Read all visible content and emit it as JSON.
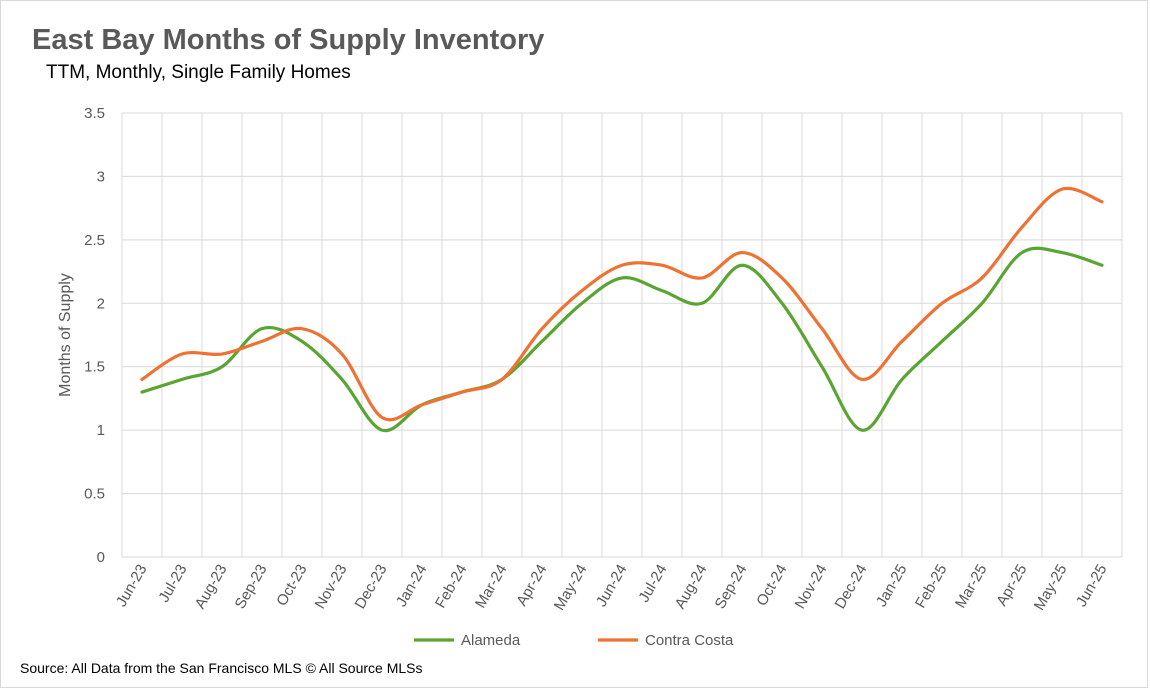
{
  "chart_data": {
    "type": "line",
    "title": "East Bay Months of Supply Inventory",
    "subtitle": "TTM, Monthly, Single Family Homes",
    "ylabel": "Months of Supply",
    "xlabel": "",
    "ylim": [
      0,
      3.5
    ],
    "yticks": [
      "0",
      "0.5",
      "1",
      "1.5",
      "2",
      "2.5",
      "3",
      "3.5"
    ],
    "grid": "both",
    "legend_position": "bottom",
    "categories": [
      "Jun-23",
      "Jul-23",
      "Aug-23",
      "Sep-23",
      "Oct-23",
      "Nov-23",
      "Dec-23",
      "Jan-24",
      "Feb-24",
      "Mar-24",
      "Apr-24",
      "May-24",
      "Jun-24",
      "Jul-24",
      "Aug-24",
      "Sep-24",
      "Oct-24",
      "Nov-24",
      "Dec-24",
      "Jan-25",
      "Feb-25",
      "Mar-25",
      "Apr-25",
      "May-25",
      "Jun-25"
    ],
    "series": [
      {
        "name": "Alameda",
        "color": "#5aa532",
        "values": [
          1.3,
          1.4,
          1.5,
          1.8,
          1.7,
          1.4,
          1.0,
          1.2,
          1.3,
          1.4,
          1.7,
          2.0,
          2.2,
          2.1,
          2.0,
          2.3,
          2.0,
          1.5,
          1.0,
          1.4,
          1.7,
          2.0,
          2.4,
          2.4,
          2.3
        ]
      },
      {
        "name": "Contra Costa",
        "color": "#ed7233",
        "values": [
          1.4,
          1.6,
          1.6,
          1.7,
          1.8,
          1.6,
          1.1,
          1.2,
          1.3,
          1.4,
          1.8,
          2.1,
          2.3,
          2.3,
          2.2,
          2.4,
          2.2,
          1.8,
          1.4,
          1.7,
          2.0,
          2.2,
          2.6,
          2.9,
          2.8
        ]
      }
    ]
  },
  "source": "Source: All Data from the San Francisco MLS © All Source MLSs"
}
